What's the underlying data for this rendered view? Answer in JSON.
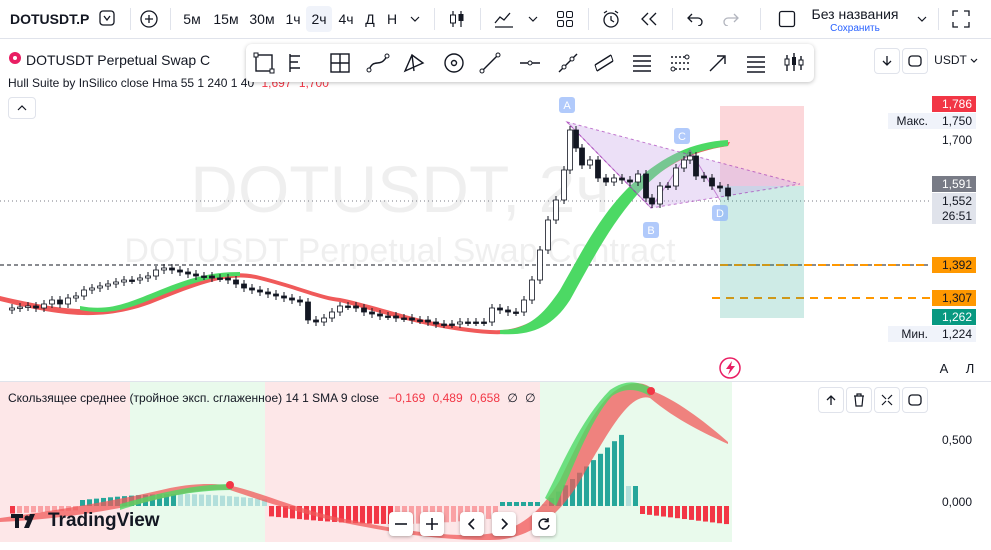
{
  "toolbar": {
    "symbol": "DOTUSDT.P",
    "intervals": [
      "5м",
      "15м",
      "30м",
      "1ч",
      "2ч",
      "4ч",
      "Д",
      "Н"
    ],
    "active_interval": "2ч",
    "layout_title": "Без названия",
    "layout_status": "Сохранить"
  },
  "chart_header": {
    "symbol_desc": "DOTUSDT Perpetual Swap C",
    "indicator": "Hull Suite by InSilico close Hma 55 1 240 1 40",
    "indicator_v1": "1,697",
    "indicator_v2": "1,700",
    "currency": "USDT"
  },
  "watermark": {
    "line1": "DOTUSDT, 2ч",
    "line2": "DOTUSDT Perpetual Swap Contract"
  },
  "pattern_labels": [
    "A",
    "B",
    "C",
    "D"
  ],
  "price_scale": {
    "labels": [
      {
        "text": "1,786",
        "bg": "#f23645",
        "fg": "#ffffff"
      },
      {
        "text": "1,750",
        "tag": "Макс.",
        "bg": "#f0f3fa",
        "fg": "#131722"
      },
      {
        "text": "1,700"
      },
      {
        "text": "1,591",
        "bg": "#787b86",
        "fg": "#ffffff"
      },
      {
        "text": "1,552",
        "bg": "#e0e3eb",
        "fg": "#131722"
      },
      {
        "text": "26:51",
        "bg": "#e0e3eb",
        "fg": "#131722"
      },
      {
        "text": "1,392",
        "bg": "#ff9800",
        "fg": "#131722"
      },
      {
        "text": "1,307",
        "bg": "#ff9800",
        "fg": "#131722"
      },
      {
        "text": "1,262",
        "bg": "#089981",
        "fg": "#ffffff"
      },
      {
        "text": "1,224",
        "tag": "Мин.",
        "bg": "#f0f3fa",
        "fg": "#131722"
      }
    ],
    "auto_btn": "A",
    "log_btn": "Л"
  },
  "oscillator": {
    "legend": "Скользящее среднее (тройное эксп. сглаженное) 14 1 SMA 9 close",
    "v1": "−0,169",
    "v2": "0,489",
    "v3": "0,658",
    "v4": "∅",
    "v5": "∅",
    "scale": [
      "0,500",
      "0,000"
    ]
  },
  "branding": "TradingView",
  "colors": {
    "bull": "#089981",
    "bear": "#f23645",
    "hull_up": "#4cd964",
    "hull_down": "#f05a5a",
    "pattern_fill": "#c9a6e8",
    "orange": "#ff9800"
  }
}
